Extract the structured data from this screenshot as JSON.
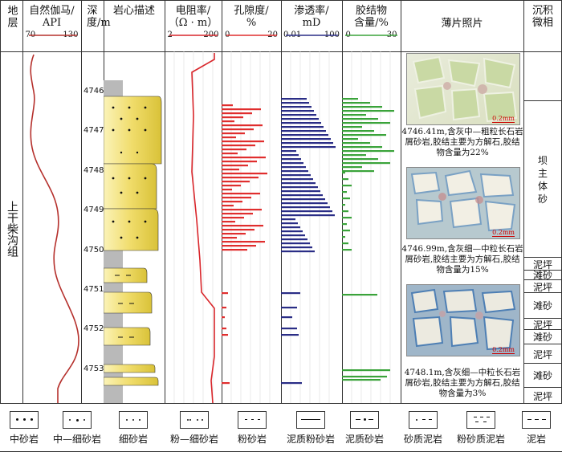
{
  "headers": {
    "stratum": "地层",
    "gamma": {
      "title": "自然伽马/",
      "unit": "API",
      "min": "70",
      "max": "130"
    },
    "depth": "深度/m",
    "core": "岩心描述",
    "resist": {
      "title": "电阻率/",
      "unit": "（Ω · m）",
      "min": "2",
      "max": "200"
    },
    "poro": {
      "title": "孔隙度/",
      "unit": "%",
      "min": "0",
      "max": "20"
    },
    "perm": {
      "title": "渗透率/",
      "unit": "mD",
      "min": "0.01",
      "max": "100"
    },
    "cement": {
      "title": "胶结物",
      "unit": "含量/%",
      "min": "0",
      "max": "30"
    },
    "photo": "薄片照片",
    "micro": "沉积微相"
  },
  "formation": "上干柴沟组",
  "depth_ticks": [
    "4746",
    "4747",
    "4748",
    "4749",
    "4750",
    "4751",
    "4752",
    "4753"
  ],
  "photos": [
    {
      "scale": "0.2mm",
      "caption": "4746.41m,含灰中—粗粒长石岩屑砂岩,胶结主要为方解石,胶结物含量为22%"
    },
    {
      "scale": "0.2mm",
      "caption": "4746.99m,含灰细—中粒长石岩屑砂岩,胶结主要为方解石,胶结物含量为15%"
    },
    {
      "scale": "0.2mm",
      "caption": "4748.1m,含灰细—中粒长石岩屑砂岩,胶结主要为方解石,胶结物含量为3%"
    }
  ],
  "microfacies": [
    {
      "label": "坝主体砂"
    },
    {
      "label": "泥坪"
    },
    {
      "label": "滩砂"
    },
    {
      "label": "泥坪"
    },
    {
      "label": "滩砂"
    },
    {
      "label": "泥坪"
    },
    {
      "label": "滩砂"
    },
    {
      "label": "泥坪"
    },
    {
      "label": "滩砂"
    },
    {
      "label": "泥坪"
    }
  ],
  "legend": [
    "中砂岩",
    "中—细砂岩",
    "细砂岩",
    "粉—细砂岩",
    "粉砂岩",
    "泥质粉砂岩",
    "泥质砂岩",
    "砂质泥岩",
    "粉砂质泥岩",
    "泥岩"
  ],
  "colors": {
    "gamma": "#b5302c",
    "resist": "#d9262b",
    "poro": "#e02e2e",
    "perm": "#2a2d86",
    "cement": "#3aa33a",
    "sand": "#f3e58a",
    "mud": "#b9b9b9"
  }
}
